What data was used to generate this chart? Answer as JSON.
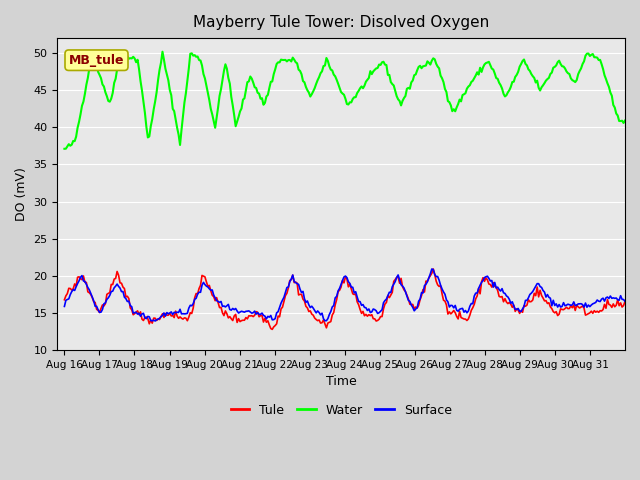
{
  "title": "Mayberry Tule Tower: Disolved Oxygen",
  "xlabel": "Time",
  "ylabel": "DO (mV)",
  "ylim": [
    10,
    52
  ],
  "yticks": [
    10,
    15,
    20,
    25,
    30,
    35,
    40,
    45,
    50
  ],
  "x_labels": [
    "Aug 16",
    "Aug 17",
    "Aug 18",
    "Aug 19",
    "Aug 20",
    "Aug 21",
    "Aug 22",
    "Aug 23",
    "Aug 24",
    "Aug 25",
    "Aug 26",
    "Aug 27",
    "Aug 28",
    "Aug 29",
    "Aug 30",
    "Aug 31"
  ],
  "x_tick_positions": [
    0,
    1,
    2,
    3,
    4,
    5,
    6,
    7,
    8,
    9,
    10,
    11,
    12,
    13,
    14,
    15
  ],
  "legend_label": "MB_tule",
  "legend_bbox_facecolor": "#ffff99",
  "legend_bbox_edgecolor": "#aaaa00",
  "legend_text_color": "#8b0000",
  "line_colors": {
    "tule": "#ff0000",
    "water": "#00ff00",
    "surface": "#0000ff"
  },
  "background_color": "#d3d3d3",
  "plot_bg_color": "#e8e8e8",
  "grid_color": "#ffffff",
  "water_key_x": [
    0,
    0.3,
    0.8,
    1.3,
    1.6,
    2.1,
    2.4,
    2.8,
    3.3,
    3.6,
    3.9,
    4.3,
    4.6,
    4.9,
    5.3,
    5.7,
    6.1,
    6.6,
    7.0,
    7.5,
    8.1,
    8.6,
    9.1,
    9.6,
    10.1,
    10.6,
    11.1,
    11.6,
    12.1,
    12.6,
    13.1,
    13.6,
    14.1,
    14.6,
    14.9,
    15.3,
    15.8
  ],
  "water_key_y": [
    37,
    38,
    50,
    43,
    50,
    49,
    38,
    50,
    38,
    50,
    49,
    40,
    49,
    40,
    47,
    43,
    49,
    49,
    44,
    49,
    43,
    46,
    49,
    43,
    48,
    49,
    42,
    46,
    49,
    44,
    49,
    45,
    49,
    46,
    50,
    49,
    41
  ],
  "tule_key_y": [
    17,
    20,
    15,
    20,
    15,
    14,
    15,
    14,
    20,
    15,
    14,
    15,
    13,
    20,
    15,
    13,
    20,
    15,
    14,
    20,
    15,
    21,
    15,
    14,
    20,
    17,
    15,
    18,
    15,
    16,
    15,
    16,
    16
  ],
  "surf_key_y": [
    16,
    20,
    15,
    19,
    15,
    14,
    15,
    15,
    19,
    16,
    15,
    15,
    14,
    20,
    16,
    14,
    20,
    16,
    15,
    20,
    15,
    21,
    16,
    15,
    20,
    18,
    15,
    19,
    16,
    16,
    16,
    17,
    17
  ]
}
